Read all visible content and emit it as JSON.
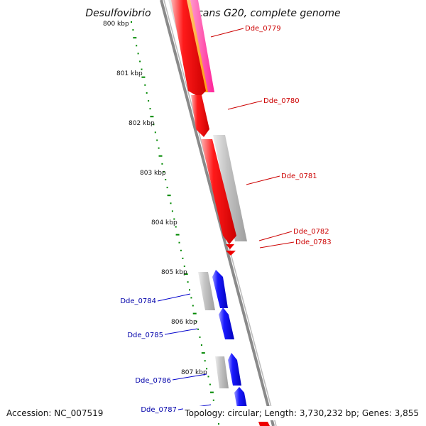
{
  "title": "Desulfovibrio desulfuricans G20, complete genome",
  "footer": {
    "accession": "Accession: NC_007519",
    "topology": "Topology: circular; Length: 3,730,232 bp; Genes: 3,855"
  },
  "kbp_ticks": [
    {
      "label": "800 kbp",
      "kbp": 800
    },
    {
      "label": "801 kbp",
      "kbp": 801
    },
    {
      "label": "802 kbp",
      "kbp": 802
    },
    {
      "label": "803 kbp",
      "kbp": 803
    },
    {
      "label": "804 kbp",
      "kbp": 804
    },
    {
      "label": "805 kbp",
      "kbp": 805
    },
    {
      "label": "806 kbp",
      "kbp": 806
    },
    {
      "label": "807 kbp",
      "kbp": 807
    }
  ],
  "genes": [
    {
      "id": "Dde_0779",
      "strand": "forward",
      "color": "#ee0000"
    },
    {
      "id": "Dde_0780",
      "strand": "forward",
      "color": "#ee0000"
    },
    {
      "id": "Dde_0781",
      "strand": "forward",
      "color": "#ee0000"
    },
    {
      "id": "Dde_0782",
      "strand": "forward",
      "color": "#ee0000"
    },
    {
      "id": "Dde_0783",
      "strand": "forward",
      "color": "#ee0000"
    },
    {
      "id": "Dde_0784",
      "strand": "reverse",
      "color": "#0000cc"
    },
    {
      "id": "Dde_0785",
      "strand": "reverse",
      "color": "#0000cc"
    },
    {
      "id": "Dde_0786",
      "strand": "reverse",
      "color": "#0000cc"
    },
    {
      "id": "Dde_0787",
      "strand": "reverse",
      "color": "#0000cc"
    }
  ],
  "colors": {
    "forward_gene": "#ee0000",
    "reverse_gene": "#0000ee",
    "forward_label": "#cc0000",
    "reverse_label": "#0000aa",
    "backbone": "#777777",
    "gc_track": "#008800",
    "cog_gray": "#bdbdbd",
    "orange_track": "#ff9900",
    "magenta_track": "#ff3399"
  }
}
